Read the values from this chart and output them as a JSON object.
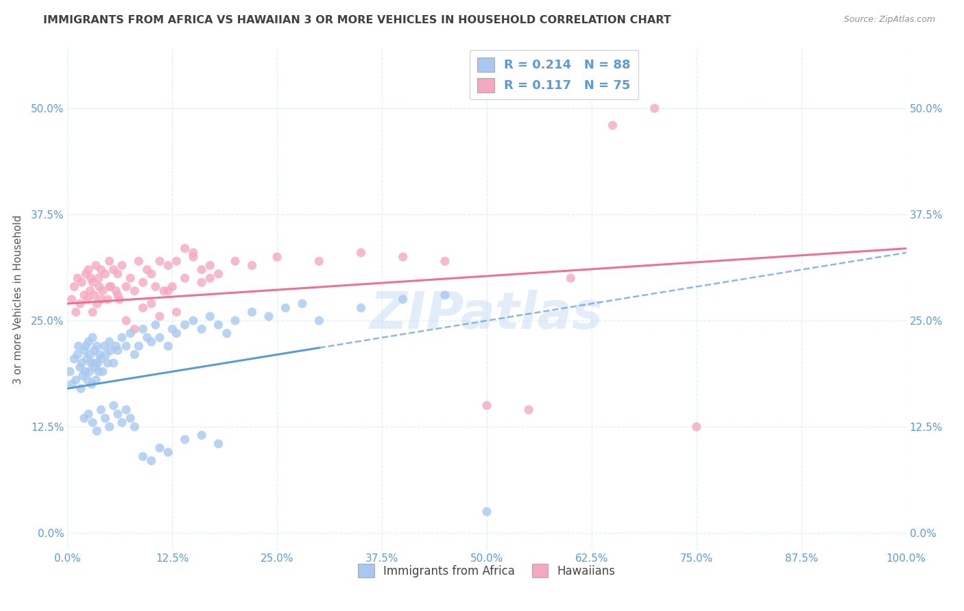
{
  "title": "IMMIGRANTS FROM AFRICA VS HAWAIIAN 3 OR MORE VEHICLES IN HOUSEHOLD CORRELATION CHART",
  "source": "Source: ZipAtlas.com",
  "ylabel": "3 or more Vehicles in Household",
  "xlim": [
    0,
    100
  ],
  "ylim": [
    -2,
    57
  ],
  "legend_r1": "R = 0.214",
  "legend_n1": "N = 88",
  "legend_r2": "R = 0.117",
  "legend_n2": "N = 75",
  "color_blue": "#A8C8F0",
  "color_pink": "#F5A8C0",
  "color_blue_line": "#5B9BD5",
  "color_pink_line": "#F07090",
  "color_watermark": "#B8D4F0",
  "background": "#FFFFFF",
  "grid_color": "#DDEEFF",
  "title_color": "#404040",
  "source_color": "#909090",
  "blue_line_x0": 0,
  "blue_line_y0": 17.0,
  "blue_line_x1": 100,
  "blue_line_y1": 33.0,
  "blue_dash_x0": 30,
  "blue_dash_x1": 100,
  "pink_line_x0": 0,
  "pink_line_y0": 27.0,
  "pink_line_x1": 100,
  "pink_line_y1": 33.5,
  "blue_scatter_x": [
    0.3,
    0.5,
    0.8,
    1.0,
    1.2,
    1.3,
    1.5,
    1.6,
    1.7,
    1.8,
    2.0,
    2.1,
    2.2,
    2.3,
    2.4,
    2.5,
    2.6,
    2.7,
    2.8,
    2.9,
    3.0,
    3.1,
    3.2,
    3.3,
    3.4,
    3.5,
    3.6,
    3.7,
    3.8,
    4.0,
    4.2,
    4.4,
    4.6,
    4.8,
    5.0,
    5.2,
    5.5,
    5.8,
    6.0,
    6.5,
    7.0,
    7.5,
    8.0,
    8.5,
    9.0,
    9.5,
    10.0,
    10.5,
    11.0,
    12.0,
    12.5,
    13.0,
    14.0,
    15.0,
    16.0,
    17.0,
    18.0,
    19.0,
    20.0,
    22.0,
    24.0,
    26.0,
    28.0,
    30.0,
    35.0,
    40.0,
    45.0,
    50.0,
    2.0,
    2.5,
    3.0,
    3.5,
    4.0,
    4.5,
    5.0,
    5.5,
    6.0,
    6.5,
    7.0,
    7.5,
    8.0,
    9.0,
    10.0,
    11.0,
    12.0,
    14.0,
    16.0,
    18.0
  ],
  "blue_scatter_y": [
    19.0,
    17.5,
    20.5,
    18.0,
    21.0,
    22.0,
    19.5,
    17.0,
    20.0,
    18.5,
    21.5,
    19.0,
    22.0,
    20.5,
    18.0,
    22.5,
    19.0,
    21.0,
    20.0,
    17.5,
    23.0,
    20.0,
    21.5,
    19.5,
    18.0,
    22.0,
    20.0,
    19.0,
    21.0,
    20.5,
    19.0,
    22.0,
    21.0,
    20.0,
    22.5,
    21.5,
    20.0,
    22.0,
    21.5,
    23.0,
    22.0,
    23.5,
    21.0,
    22.0,
    24.0,
    23.0,
    22.5,
    24.5,
    23.0,
    22.0,
    24.0,
    23.5,
    24.5,
    25.0,
    24.0,
    25.5,
    24.5,
    23.5,
    25.0,
    26.0,
    25.5,
    26.5,
    27.0,
    25.0,
    26.5,
    27.5,
    28.0,
    2.5,
    13.5,
    14.0,
    13.0,
    12.0,
    14.5,
    13.5,
    12.5,
    15.0,
    14.0,
    13.0,
    14.5,
    13.5,
    12.5,
    9.0,
    8.5,
    10.0,
    9.5,
    11.0,
    11.5,
    10.5
  ],
  "pink_scatter_x": [
    0.5,
    0.8,
    1.0,
    1.2,
    1.5,
    1.7,
    2.0,
    2.2,
    2.4,
    2.5,
    2.7,
    2.8,
    3.0,
    3.2,
    3.4,
    3.5,
    3.7,
    3.8,
    4.0,
    4.2,
    4.5,
    4.8,
    5.0,
    5.2,
    5.5,
    5.8,
    6.0,
    6.2,
    6.5,
    7.0,
    7.5,
    8.0,
    8.5,
    9.0,
    9.5,
    10.0,
    10.5,
    11.0,
    11.5,
    12.0,
    12.5,
    13.0,
    14.0,
    15.0,
    16.0,
    17.0,
    18.0,
    20.0,
    22.0,
    25.0,
    30.0,
    35.0,
    40.0,
    45.0,
    50.0,
    55.0,
    60.0,
    65.0,
    70.0,
    75.0,
    3.0,
    4.0,
    5.0,
    6.0,
    7.0,
    8.0,
    9.0,
    10.0,
    11.0,
    12.0,
    13.0,
    14.0,
    15.0,
    16.0,
    17.0
  ],
  "pink_scatter_y": [
    27.5,
    29.0,
    26.0,
    30.0,
    27.0,
    29.5,
    28.0,
    30.5,
    27.5,
    31.0,
    28.5,
    30.0,
    29.5,
    28.0,
    31.5,
    27.0,
    30.0,
    29.0,
    31.0,
    28.5,
    30.5,
    27.5,
    32.0,
    29.0,
    31.0,
    28.5,
    30.5,
    27.5,
    31.5,
    29.0,
    30.0,
    28.5,
    32.0,
    29.5,
    31.0,
    30.5,
    29.0,
    32.0,
    28.5,
    31.5,
    29.0,
    32.0,
    30.0,
    33.0,
    29.5,
    31.5,
    30.5,
    32.0,
    31.5,
    32.5,
    32.0,
    33.0,
    32.5,
    32.0,
    15.0,
    14.5,
    30.0,
    48.0,
    50.0,
    12.5,
    26.0,
    27.5,
    29.0,
    28.0,
    25.0,
    24.0,
    26.5,
    27.0,
    25.5,
    28.5,
    26.0,
    33.5,
    32.5,
    31.0,
    30.0
  ]
}
